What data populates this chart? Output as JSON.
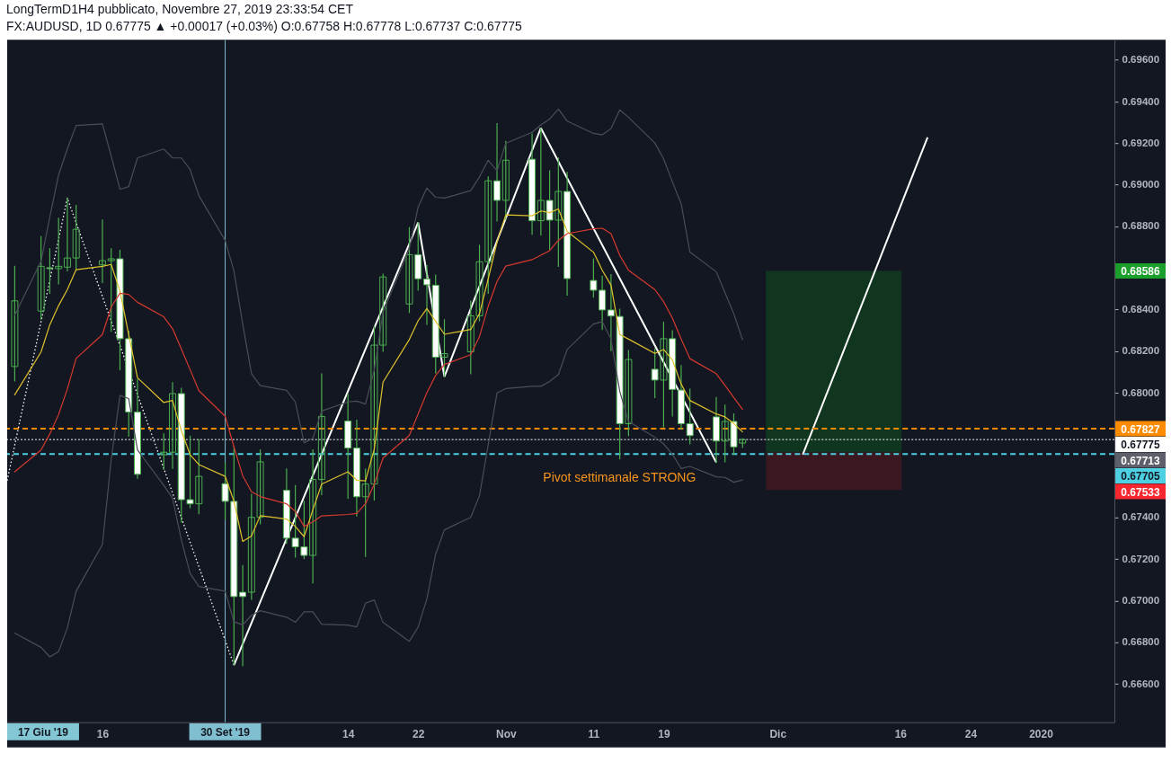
{
  "chart_data": {
    "type": "candlestick",
    "title": "LongTermD1H4 pubblicato, Novembre 27, 2019 23:33:54 CET",
    "subtitle": "FX:AUDUSD, 1D 0.67775 ▲ +0.00017 (+0.03%) O:0.67758 H:0.67778 L:0.67737 C:0.67775",
    "color": "#4caf50",
    "x": [
      "2019-09-06",
      "2019-09-09",
      "2019-09-10",
      "2019-09-11",
      "2019-09-12",
      "2019-09-13",
      "2019-09-16",
      "2019-09-17",
      "2019-09-18",
      "2019-09-19",
      "2019-09-20",
      "2019-09-23",
      "2019-09-24",
      "2019-09-25",
      "2019-09-26",
      "2019-09-27",
      "2019-09-30",
      "2019-10-01",
      "2019-10-02",
      "2019-10-03",
      "2019-10-04",
      "2019-10-07",
      "2019-10-08",
      "2019-10-09",
      "2019-10-10",
      "2019-10-11",
      "2019-10-14",
      "2019-10-15",
      "2019-10-16",
      "2019-10-17",
      "2019-10-18",
      "2019-10-21",
      "2019-10-22",
      "2019-10-23",
      "2019-10-24",
      "2019-10-25",
      "2019-10-28",
      "2019-10-29",
      "2019-10-30",
      "2019-10-31",
      "2019-11-01",
      "2019-11-04",
      "2019-11-05",
      "2019-11-06",
      "2019-11-07",
      "2019-11-08",
      "2019-11-11",
      "2019-11-12",
      "2019-11-13",
      "2019-11-14",
      "2019-11-15",
      "2019-11-18",
      "2019-11-19",
      "2019-11-20",
      "2019-11-21",
      "2019-11-22",
      "2019-11-25",
      "2019-11-26",
      "2019-11-27",
      "2019-11-28"
    ],
    "ohlc": [
      [
        0.68126,
        0.68608,
        0.68057,
        0.68442
      ],
      [
        0.68393,
        0.68751,
        0.68354,
        0.68608
      ],
      [
        0.68601,
        0.68692,
        0.68478,
        0.68597
      ],
      [
        0.68597,
        0.68839,
        0.68523,
        0.68608
      ],
      [
        0.68604,
        0.68936,
        0.68586,
        0.68648
      ],
      [
        0.68648,
        0.68901,
        0.68589,
        0.68786
      ],
      [
        0.68615,
        0.68831,
        0.6853,
        0.68635
      ],
      [
        0.68635,
        0.68692,
        0.68296,
        0.68644
      ],
      [
        0.68644,
        0.68685,
        0.68111,
        0.6826
      ],
      [
        0.6826,
        0.68296,
        0.67791,
        0.67907
      ],
      [
        0.67907,
        0.68064,
        0.67589,
        0.67608
      ],
      [
        0.67702,
        0.67802,
        0.67632,
        0.67714
      ],
      [
        0.67714,
        0.68049,
        0.67637,
        0.67996
      ],
      [
        0.67996,
        0.68021,
        0.67378,
        0.67486
      ],
      [
        0.67486,
        0.67791,
        0.67447,
        0.67466
      ],
      [
        0.67466,
        0.67774,
        0.67419,
        0.67598
      ],
      [
        0.67563,
        0.67663,
        0.67393,
        0.67478
      ],
      [
        0.67478,
        0.6774,
        0.66691,
        0.6702
      ],
      [
        0.67041,
        0.67169,
        0.66688,
        0.6702
      ],
      [
        0.67041,
        0.67512,
        0.67007,
        0.67401
      ],
      [
        0.67401,
        0.67725,
        0.6737,
        0.67668
      ],
      [
        0.67531,
        0.67634,
        0.67276,
        0.67301
      ],
      [
        0.67301,
        0.67554,
        0.6721,
        0.67259
      ],
      [
        0.67259,
        0.67478,
        0.67203,
        0.67218
      ],
      [
        0.67218,
        0.67726,
        0.67086,
        0.67583
      ],
      [
        0.67583,
        0.68091,
        0.6751,
        0.67886
      ],
      [
        0.67864,
        0.67992,
        0.67493,
        0.67734
      ],
      [
        0.67734,
        0.67868,
        0.67408,
        0.675
      ],
      [
        0.675,
        0.67634,
        0.67213,
        0.67561
      ],
      [
        0.67561,
        0.68317,
        0.67484,
        0.68229
      ],
      [
        0.68229,
        0.6857,
        0.682,
        0.68557
      ],
      [
        0.68427,
        0.68794,
        0.68386,
        0.68664
      ],
      [
        0.68664,
        0.68818,
        0.68493,
        0.68548
      ],
      [
        0.68547,
        0.68611,
        0.68329,
        0.68519
      ],
      [
        0.68517,
        0.68566,
        0.68095,
        0.68171
      ],
      [
        0.68171,
        0.68351,
        0.68078,
        0.68188
      ],
      [
        0.68197,
        0.68441,
        0.68092,
        0.6837
      ],
      [
        0.6837,
        0.68709,
        0.68346,
        0.6863
      ],
      [
        0.6863,
        0.69038,
        0.68478,
        0.69019
      ],
      [
        0.69019,
        0.69294,
        0.68826,
        0.68925
      ],
      [
        0.68925,
        0.69209,
        0.68833,
        0.69118
      ],
      [
        0.69123,
        0.69244,
        0.68762,
        0.68827
      ],
      [
        0.68827,
        0.69273,
        0.68759,
        0.68925
      ],
      [
        0.68925,
        0.69067,
        0.6869,
        0.6883
      ],
      [
        0.6883,
        0.69129,
        0.68608,
        0.68968
      ],
      [
        0.68968,
        0.6906,
        0.6847,
        0.68549
      ],
      [
        0.6854,
        0.68644,
        0.6846,
        0.68493
      ],
      [
        0.68493,
        0.6856,
        0.68304,
        0.68398
      ],
      [
        0.68398,
        0.68568,
        0.68203,
        0.68369
      ],
      [
        0.68367,
        0.68402,
        0.67682,
        0.67851
      ],
      [
        0.67851,
        0.68203,
        0.67794,
        0.6816
      ],
      [
        0.68113,
        0.68212,
        0.67977,
        0.68061
      ],
      [
        0.68061,
        0.68339,
        0.67836,
        0.6826
      ],
      [
        0.6826,
        0.68298,
        0.67888,
        0.68016
      ],
      [
        0.68013,
        0.68131,
        0.67826,
        0.67851
      ],
      [
        0.67851,
        0.68017,
        0.67754,
        0.67794
      ],
      [
        0.67884,
        0.67977,
        0.67665,
        0.67768
      ],
      [
        0.67768,
        0.67941,
        0.67668,
        0.67862
      ],
      [
        0.67862,
        0.67898,
        0.67704,
        0.6774
      ],
      [
        0.67758,
        0.67778,
        0.67737,
        0.67775
      ]
    ],
    "series": [
      {
        "type": "line",
        "color": "#e0c22c",
        "values": [
          0.6799,
          0.68196,
          0.68327,
          0.68419,
          0.68496,
          0.68592,
          0.68608,
          0.68617,
          0.68489,
          0.6828,
          0.68072,
          0.67953,
          0.67963,
          0.67818,
          0.67702,
          0.67655,
          0.67598,
          0.67478,
          0.67285,
          0.67311,
          0.67409,
          0.67393,
          0.67357,
          0.67308,
          0.67437,
          0.67561,
          0.6762,
          0.6758,
          0.67576,
          0.67729,
          0.68051,
          0.68256,
          0.68346,
          0.68405,
          0.68343,
          0.68281,
          0.68304,
          0.6838,
          0.68548,
          0.68724,
          0.68855,
          0.68851,
          0.68874,
          0.68866,
          0.68884,
          0.68776,
          0.68676,
          0.68589,
          0.68517,
          0.6828,
          0.68258,
          0.68189,
          0.68208,
          0.68157,
          0.68042,
          0.67963,
          0.67898,
          0.67884,
          0.67852,
          0.67812
        ]
      },
      {
        "type": "line",
        "color": "#d63a2f",
        "values": [
          0.6762,
          0.67725,
          0.67802,
          0.67895,
          0.68018,
          0.68165,
          0.6828,
          0.68412,
          0.68478,
          0.68473,
          0.68435,
          0.68365,
          0.68308,
          0.68211,
          0.68111,
          0.6801,
          0.67887,
          0.6774,
          0.67601,
          0.67524,
          0.67501,
          0.67466,
          0.6743,
          0.67357,
          0.67379,
          0.67408,
          0.67415,
          0.6742,
          0.67466,
          0.67561,
          0.67686,
          0.67795,
          0.67898,
          0.68,
          0.68083,
          0.68136,
          0.68183,
          0.6827,
          0.68417,
          0.68535,
          0.68609,
          0.6864,
          0.68661,
          0.68683,
          0.68733,
          0.68765,
          0.68788,
          0.68791,
          0.68765,
          0.68661,
          0.68589,
          0.68496,
          0.68438,
          0.68359,
          0.68258,
          0.68164,
          0.68092,
          0.68035,
          0.67977,
          0.6792
        ]
      },
      {
        "type": "line",
        "color": "#4a4e58",
        "values": [
          0.68373,
          0.68632,
          0.68844,
          0.69047,
          0.69172,
          0.69285,
          0.69293,
          0.69138,
          0.68978,
          0.68991,
          0.69129,
          0.69172,
          0.69129,
          0.69129,
          0.69073,
          0.68948,
          0.68732,
          0.68585,
          0.6833,
          0.68092,
          0.68034,
          0.68012,
          0.67956,
          0.67759,
          0.67781,
          0.67912,
          0.67956,
          0.6796,
          0.67946,
          0.6811,
          0.68387,
          0.68694,
          0.68892,
          0.68984,
          0.6894,
          0.68936,
          0.68972,
          0.69038,
          0.69118,
          0.69067,
          0.69199,
          0.69252,
          0.69288,
          0.69316,
          0.69364,
          0.69306,
          0.69247,
          0.6924,
          0.6927,
          0.6936,
          0.69324,
          0.69201,
          0.69125,
          0.69014,
          0.68909,
          0.68676,
          0.68582,
          0.68481,
          0.6838,
          0.68255
        ]
      },
      {
        "type": "line",
        "color": "#4a4e58",
        "values": [
          0.66845,
          0.66776,
          0.6673,
          0.66756,
          0.66869,
          0.67046,
          0.6727,
          0.67679,
          0.67987,
          0.67972,
          0.67725,
          0.67555,
          0.67493,
          0.67293,
          0.67131,
          0.67069,
          0.67046,
          0.66899,
          0.66884,
          0.6693,
          0.66952,
          0.66921,
          0.66896,
          0.66947,
          0.66947,
          0.66887,
          0.66883,
          0.66874,
          0.66988,
          0.67004,
          0.66896,
          0.66805,
          0.66874,
          0.67008,
          0.67224,
          0.67341,
          0.67401,
          0.67505,
          0.67751,
          0.67999,
          0.6802,
          0.68031,
          0.68031,
          0.68054,
          0.68088,
          0.68208,
          0.6833,
          0.68342,
          0.68258,
          0.68006,
          0.67862,
          0.67786,
          0.67754,
          0.67704,
          0.67636,
          0.67646,
          0.67596,
          0.67593,
          0.6757,
          0.67581
        ]
      },
      {
        "type": "line",
        "color": "#ffffff",
        "x": [
          "2019-10-01",
          "2019-10-22",
          "2019-10-25",
          "2019-11-05",
          "2019-11-25"
        ],
        "values": [
          0.66691,
          0.68818,
          0.68078,
          0.69273,
          0.67665
        ]
      },
      {
        "type": "line",
        "color": "#ffffff",
        "line_style": "dotted",
        "x": [
          "2019-09-05T03:21",
          "2019-09-12",
          "2019-10-01"
        ],
        "values": [
          0.67578,
          0.68936,
          0.66691
        ]
      },
      {
        "type": "line",
        "color": "#ffffff",
        "x": [
          "2019-12-04T20:53",
          "2019-12-19T02:24"
        ],
        "values": [
          0.67703,
          0.69228
        ]
      },
      {
        "type": "bar",
        "color": "#10361f",
        "x": [
          "2019-12-08T09:43"
        ],
        "values": [
          0.00873
        ],
        "base": [
          0.67713
        ]
      },
      {
        "type": "bar",
        "color": "#3b1820",
        "x": [
          "2019-12-08T09:43"
        ],
        "values": [
          0.0018
        ],
        "base": [
          0.67533
        ]
      }
    ],
    "ref_lines": [
      {
        "axis": "y",
        "value": 0.67827,
        "label": "0.67827",
        "color": "#ff8c00",
        "line_style": "dashed"
      },
      {
        "axis": "y",
        "value": 0.67775,
        "label": "0.67775",
        "color": "#ffffff",
        "line_style": "dotted"
      },
      {
        "axis": "y",
        "value": 0.67705,
        "label": "0.67705",
        "color": "#4dd0e1",
        "line_style": "dashed"
      },
      {
        "axis": "x",
        "value": "2019-09-30",
        "label": "30 Set '19",
        "color": "#80bfd0",
        "line_style": "solid"
      }
    ],
    "annotations": [
      "17 Giu '19",
      "Pivot settimanale STRONG",
      "0.68586",
      "0.67713",
      "0.67533"
    ],
    "xlim": [
      "2019-09-05T03:21",
      "2020-01-09T09:50"
    ],
    "ylim": [
      0.66416,
      0.69697
    ],
    "xticks": [
      {
        "value": "2019-09-16",
        "label": "16"
      },
      {
        "value": "2019-10-14",
        "label": "14"
      },
      {
        "value": "2019-10-22",
        "label": "22"
      },
      {
        "value": "2019-11-01",
        "label": "Nov"
      },
      {
        "value": "2019-11-11",
        "label": "11"
      },
      {
        "value": "2019-11-19",
        "label": "19"
      },
      {
        "value": "2019-12-02",
        "label": "Dic"
      },
      {
        "value": "2019-12-16",
        "label": "16"
      },
      {
        "value": "2019-12-24",
        "label": "24"
      },
      {
        "value": "2020-01-01",
        "label": "2020"
      }
    ],
    "yticks": [
      {
        "value": 0.666,
        "label": "0.66600"
      },
      {
        "value": 0.668,
        "label": "0.66800"
      },
      {
        "value": 0.67,
        "label": "0.67000"
      },
      {
        "value": 0.672,
        "label": "0.67200"
      },
      {
        "value": 0.674,
        "label": "0.67400"
      },
      {
        "value": 0.68,
        "label": "0.68000"
      },
      {
        "value": 0.682,
        "label": "0.68200"
      },
      {
        "value": 0.684,
        "label": "0.68400"
      },
      {
        "value": 0.688,
        "label": "0.68800"
      },
      {
        "value": 0.69,
        "label": "0.69000"
      },
      {
        "value": 0.692,
        "label": "0.69200"
      },
      {
        "value": 0.694,
        "label": "0.69400"
      },
      {
        "value": 0.696,
        "label": "0.69600"
      }
    ]
  }
}
